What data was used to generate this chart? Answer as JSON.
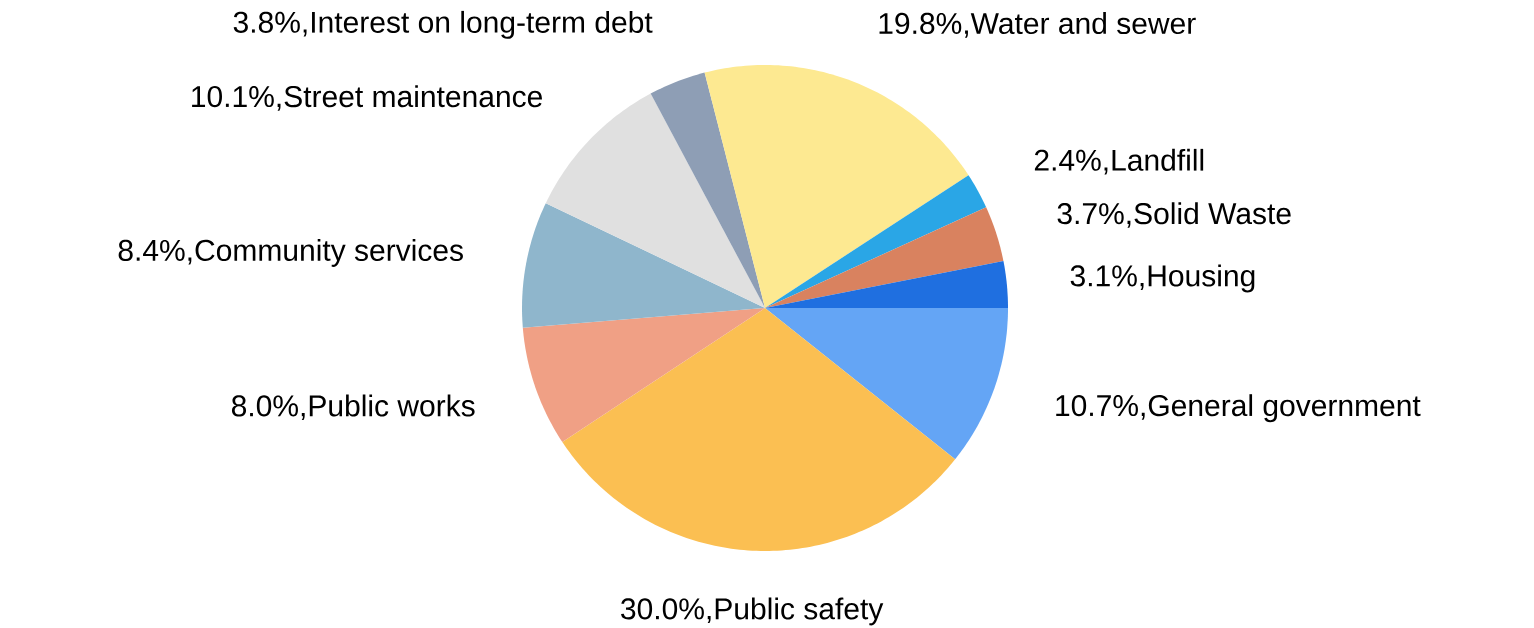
{
  "chart_data": {
    "type": "pie",
    "categories": [
      "General government",
      "Public safety",
      "Public works",
      "Community services",
      "Street maintenance",
      "Interest on long-term debt",
      "Water and sewer",
      "Landfill",
      "Solid Waste",
      "Housing"
    ],
    "values": [
      10.7,
      30.0,
      8.0,
      8.4,
      10.1,
      3.8,
      19.8,
      2.4,
      3.7,
      3.1
    ],
    "value_labels": [
      "10.7%,",
      "30.0%,",
      "8.0%,",
      "8.4%,",
      "10.1%,",
      "3.8%,",
      "19.8%,",
      "2.4%,",
      "3.7%,",
      "3.1%,"
    ],
    "colors": [
      "#64a5f5",
      "#fbbf52",
      "#f0a085",
      "#8fb6cc",
      "#e0e0e0",
      "#8e9eb5",
      "#fde991",
      "#2aa6e6",
      "#d9825f",
      "#1f6fe0"
    ]
  }
}
